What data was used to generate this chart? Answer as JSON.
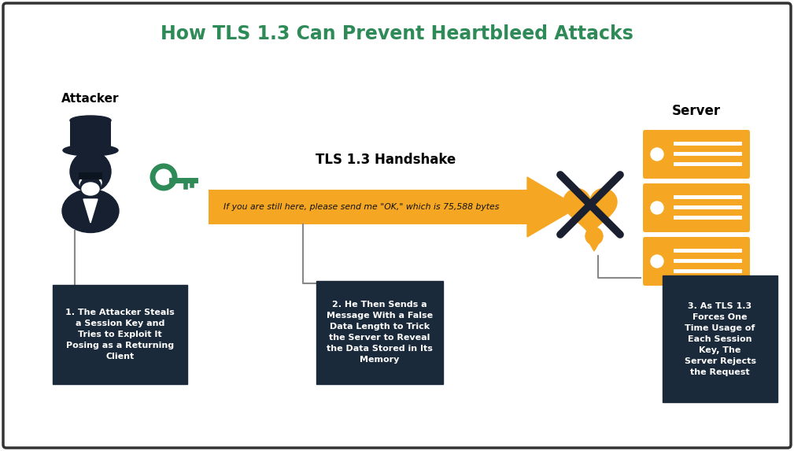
{
  "title": "How TLS 1.3 Can Prevent Heartbleed Attacks",
  "title_color": "#2E8B57",
  "title_fontsize": 17,
  "bg_color": "#ffffff",
  "border_color": "#444444",
  "dark_box_color": "#1a2a3a",
  "dark_box_text_color": "#ffffff",
  "arrow_color": "#F5A623",
  "server_color": "#F5A623",
  "attacker_color": "#162030",
  "key_color": "#2E8B57",
  "drop_color": "#F5A623",
  "heart_color": "#F5A623",
  "label_attacker": "Attacker",
  "label_handshake": "TLS 1.3 Handshake",
  "label_server": "Server",
  "arrow_text": "If you are still here, please send me \"OK,\" which is 75,588 bytes",
  "box1_text": "1. The Attacker Steals\na Session Key and\nTries to Exploit It\nPosing as a Returning\nClient",
  "box2_text": "2. He Then Sends a\nMessage With a False\nData Length to Trick\nthe Server to Reveal\nthe Data Stored in Its\nMemory",
  "box3_text": "3. As TLS 1.3\nForces One\nTime Usage of\nEach Session\nKey, The\nServer Rejects\nthe Request"
}
